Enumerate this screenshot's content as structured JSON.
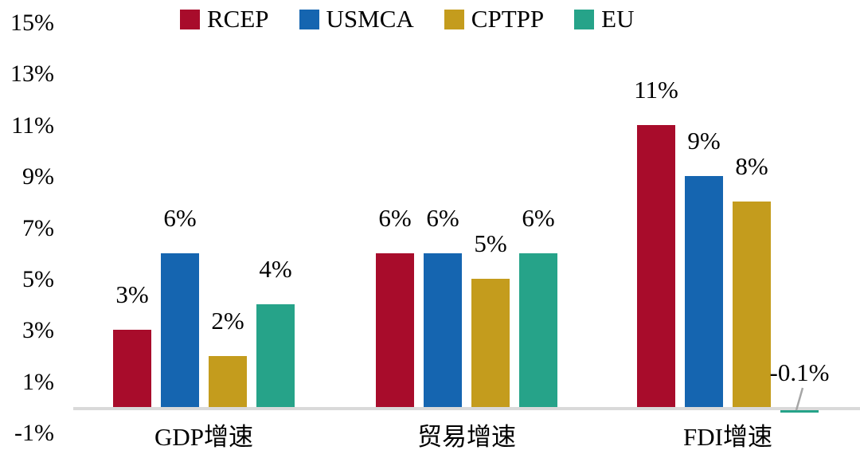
{
  "chart_data": {
    "type": "bar",
    "title": "",
    "categories": [
      "GDP增速",
      "贸易增速",
      "FDI增速"
    ],
    "series": [
      {
        "name": "RCEP",
        "color": "#A80C2B",
        "values": [
          3,
          6,
          11
        ],
        "labels": [
          "3%",
          "6%",
          "11%"
        ]
      },
      {
        "name": "USMCA",
        "color": "#1565B0",
        "values": [
          6,
          6,
          9
        ],
        "labels": [
          "6%",
          "6%",
          "9%"
        ]
      },
      {
        "name": "CPTPP",
        "color": "#C49C1D",
        "values": [
          2,
          5,
          8
        ],
        "labels": [
          "2%",
          "5%",
          "8%"
        ]
      },
      {
        "name": "EU",
        "color": "#26A389",
        "values": [
          4,
          6,
          -0.1
        ],
        "labels": [
          "4%",
          "6%",
          "-0.1%"
        ]
      }
    ],
    "y_axis": {
      "tick_labels": [
        "15%",
        "13%",
        "11%",
        "9%",
        "7%",
        "5%",
        "3%",
        "1%",
        "-1%"
      ],
      "tick_values": [
        15,
        13,
        11,
        9,
        7,
        5,
        3,
        1,
        -1
      ],
      "min": -1,
      "max": 15,
      "grid": false
    },
    "legend": {
      "position": "top",
      "items": [
        "RCEP",
        "USMCA",
        "CPTPP",
        "EU"
      ]
    },
    "colors": {
      "axis_line": "#D9D9D9",
      "leader_line": "#A6A6A6",
      "text": "#000000",
      "background": "#FFFFFF"
    }
  }
}
